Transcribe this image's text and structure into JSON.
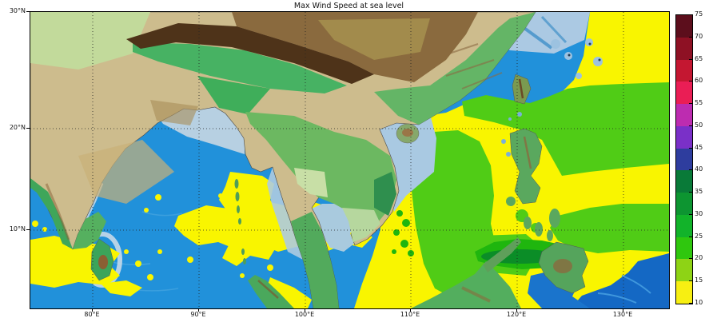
{
  "title": "Max Wind Speed at sea level",
  "axes": {
    "x_ticks": [
      {
        "label": "80°E",
        "pos": 78
      },
      {
        "label": "90°E",
        "pos": 211
      },
      {
        "label": "100°E",
        "pos": 344
      },
      {
        "label": "110°E",
        "pos": 476
      },
      {
        "label": "120°E",
        "pos": 609
      },
      {
        "label": "130°E",
        "pos": 742
      }
    ],
    "y_ticks": [
      {
        "label": "30°N",
        "pos": 0
      },
      {
        "label": "20°N",
        "pos": 146
      },
      {
        "label": "10°N",
        "pos": 273
      }
    ]
  },
  "colorbar": {
    "tick_labels_top_to_bottom": [
      "75",
      "70",
      "65",
      "60",
      "55",
      "50",
      "45",
      "40",
      "35",
      "30",
      "25",
      "20",
      "15",
      "10"
    ],
    "segment_colors_top_to_bottom": [
      "#5c0e1c",
      "#8e1124",
      "#c41731",
      "#ea1e55",
      "#bd2cb0",
      "#7a30c8",
      "#2e3d9e",
      "#097a38",
      "#0d9531",
      "#12b32a",
      "#2fc70e",
      "#8ed315",
      "#f7ef12"
    ]
  },
  "colors": {
    "ocean": "#2191da",
    "ocean_deep": "#1468c4",
    "shelf_pale_blue": "#aecbe2",
    "wind_yellow": "#f9f500",
    "wind_green_15_20": "#50cc16",
    "wind_green_20_25": "#1fb60e",
    "wind_green_25_30": "#0b8d27",
    "land_tan": "#cdbc8d",
    "land_green": "#47b263",
    "mountain_brown": "#4e3319",
    "plateau_brown": "#8a6a3e"
  },
  "chart_data": {
    "type": "heatmap",
    "title": "Max Wind Speed at sea level",
    "x_tick_labels": [
      "80°E",
      "90°E",
      "100°E",
      "110°E",
      "120°E",
      "130°E"
    ],
    "y_tick_labels": [
      "30°N",
      "20°N",
      "10°N"
    ],
    "xlabel": "",
    "ylabel": "",
    "map_extent_estimate": {
      "lon_min": 74.1,
      "lon_max": 134.2,
      "lat_min": 2.3,
      "lat_max": 30
    },
    "colorbar_levels": [
      10,
      15,
      20,
      25,
      30,
      35,
      40,
      45,
      50,
      55,
      60,
      65,
      70,
      75
    ],
    "colorbar_colors_low_to_high": [
      "#f7ef12",
      "#8ed315",
      "#2fc70e",
      "#12b32a",
      "#0d9531",
      "#097a38",
      "#2e3d9e",
      "#7a30c8",
      "#bd2cb0",
      "#ea1e55",
      "#c41731",
      "#8e1124",
      "#5c0e1c"
    ],
    "legend_position": "right",
    "grid": "dotted",
    "visible_wind_bins_on_map": [
      "10-15",
      "15-20",
      "20-25",
      "25-30"
    ],
    "overlay_description": "Wind speed shading over ocean: yellow 10-15 over Bay of Bengal patches, South China Sea coast and western Pacific; green 15-20 band across subtropical western Pacific and central South China Sea; green 20-25 and dark green 25-30 patches west of the Philippines and off southern Vietnam; terrain basemap elsewhere"
  }
}
